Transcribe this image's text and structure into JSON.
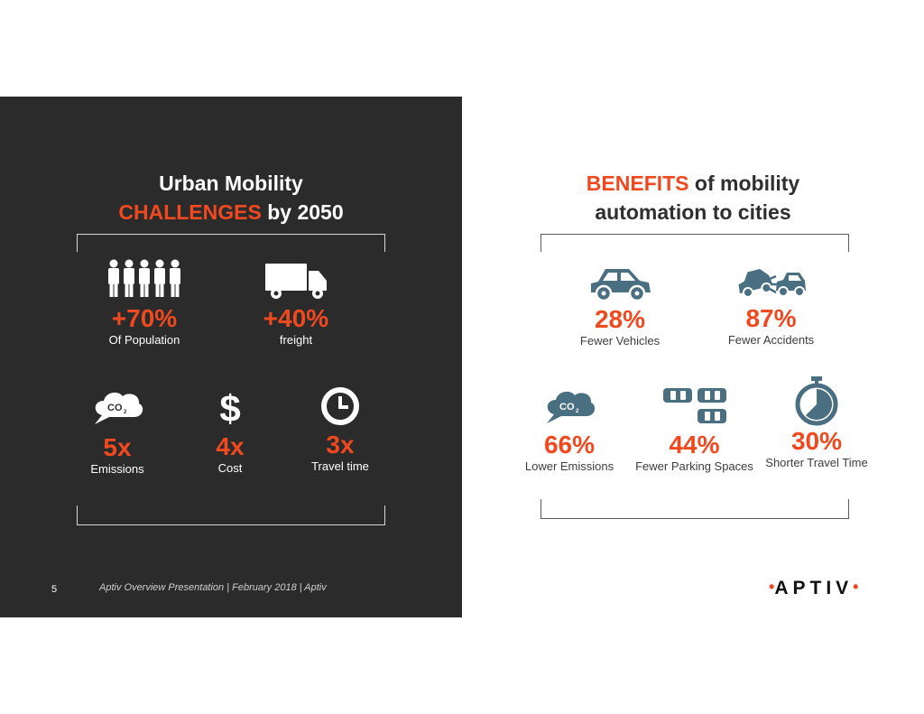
{
  "left": {
    "title_line1": "Urban Mobility",
    "title_accent": "CHALLENGES",
    "title_rest": " by 2050",
    "stats": [
      {
        "value": "+70%",
        "label": "Of Population",
        "icon": "people-icon"
      },
      {
        "value": "+40%",
        "label": "freight",
        "icon": "truck-icon"
      },
      {
        "value": "5x",
        "label": "Emissions",
        "icon": "co2-cloud-icon"
      },
      {
        "value": "4x",
        "label": "Cost",
        "icon": "dollar-icon"
      },
      {
        "value": "3x",
        "label": "Travel time",
        "icon": "clock-icon"
      }
    ]
  },
  "right": {
    "title_accent": "BENEFITS",
    "title_line1_rest": " of mobility",
    "title_line2": "automation to cities",
    "stats": [
      {
        "value": "28%",
        "label": "Fewer Vehicles",
        "icon": "car-icon"
      },
      {
        "value": "87%",
        "label": "Fewer Accidents",
        "icon": "car-crash-icon"
      },
      {
        "value": "66%",
        "label": "Lower Emissions",
        "icon": "co2-cloud-icon"
      },
      {
        "value": "44%",
        "label": "Fewer Parking Spaces",
        "icon": "parked-cars-icon"
      },
      {
        "value": "30%",
        "label": "Shorter Travel Time",
        "icon": "stopwatch-icon"
      }
    ]
  },
  "footer": {
    "page_number": "5",
    "text": "Aptiv Overview Presentation  | February 2018 | Aptiv"
  },
  "logo": {
    "text": "APTIV",
    "dot": "•"
  },
  "colors": {
    "accent": "#f0491f",
    "icon_blue": "#4a6f80",
    "dark_bg": "#2b2b2b"
  }
}
